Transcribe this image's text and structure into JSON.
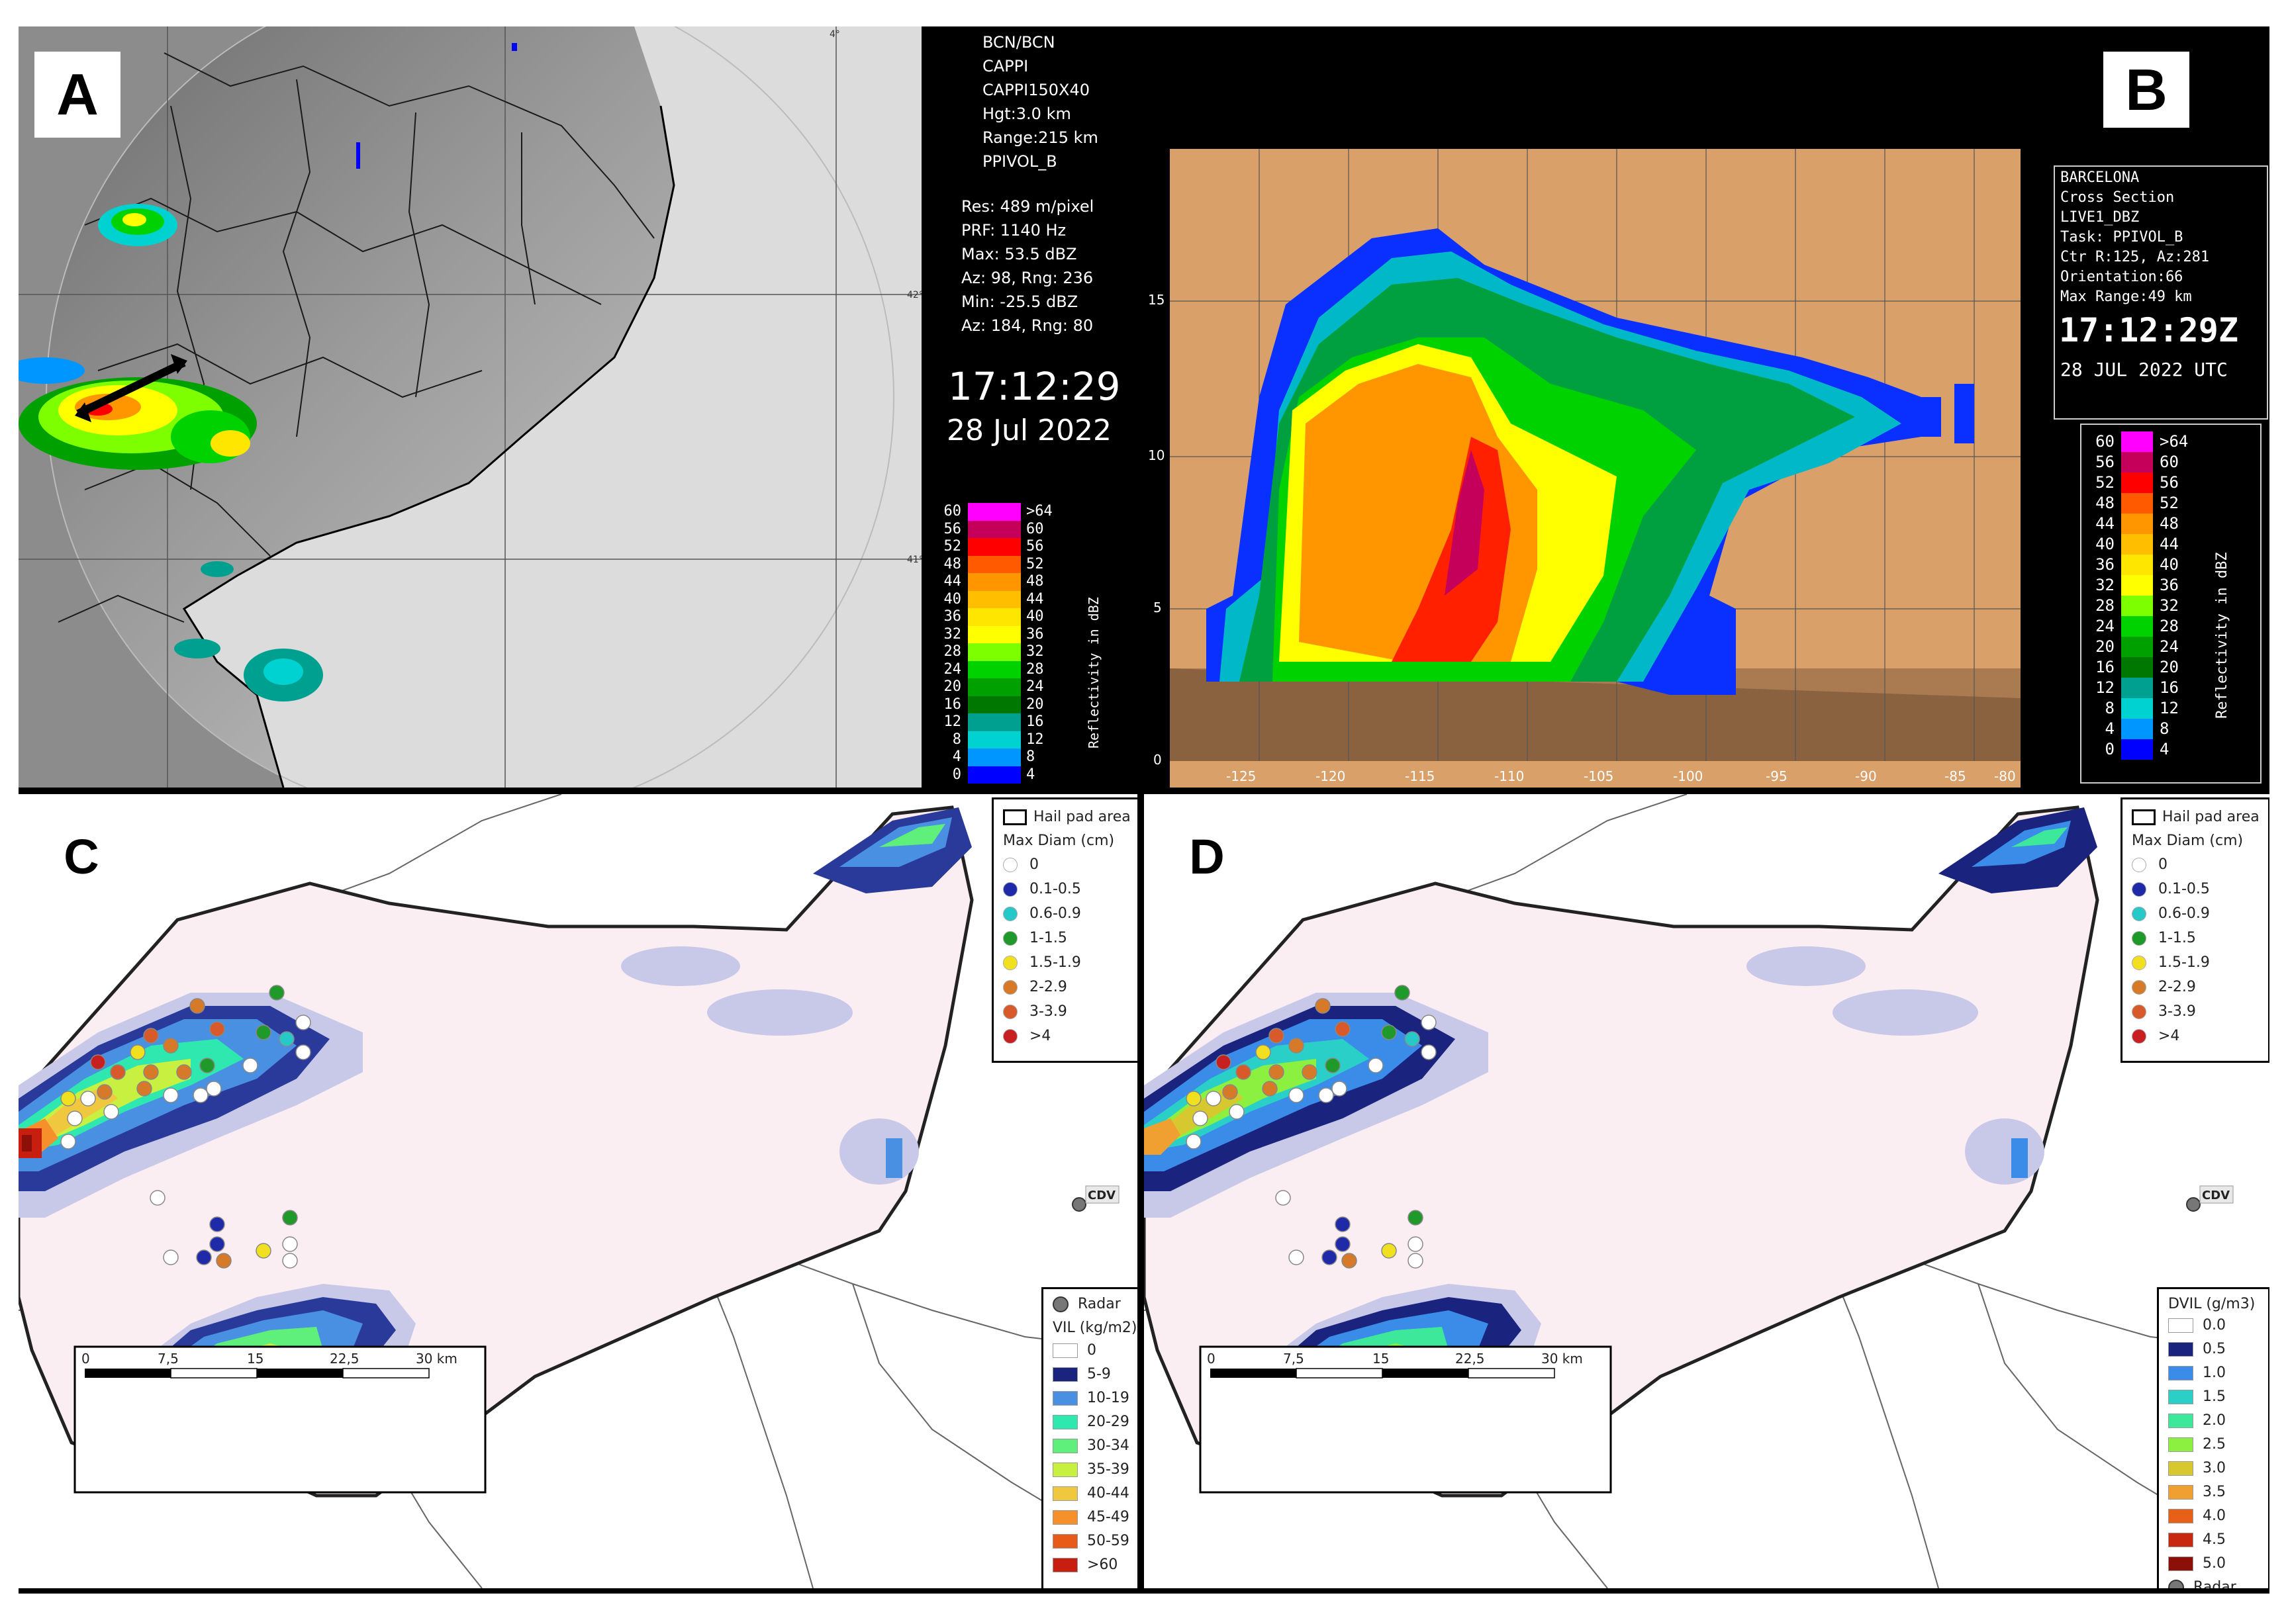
{
  "panel_labels": {
    "a": "A",
    "b": "B",
    "c": "C",
    "d": "D"
  },
  "panel_a": {
    "info": [
      "BCN/BCN",
      "CAPPI",
      "CAPPI150X40",
      "Hgt:3.0 km",
      "Range:215 km",
      "PPIVOL_B"
    ],
    "stats": [
      "Res: 489 m/pixel",
      "PRF: 1140 Hz",
      "Max: 53.5 dBZ",
      "Az:  98, Rng: 236",
      "Min: -25.5 dBZ",
      "Az:  184, Rng: 80"
    ],
    "time": "17:12:29",
    "date": "28 Jul 2022",
    "lat_labels": [
      "42°",
      "41°"
    ],
    "lon_label": "4°",
    "scale_title": "Reflectivity in dBZ",
    "scale_left": [
      "60",
      "56",
      "52",
      "48",
      "44",
      "40",
      "36",
      "32",
      "28",
      "24",
      "20",
      "16",
      "12",
      "8",
      "4",
      "0"
    ],
    "scale_right": [
      ">64",
      "60",
      "56",
      "52",
      "48",
      "44",
      "40",
      "36",
      "32",
      "28",
      "24",
      "20",
      "16",
      "12",
      "8",
      "4"
    ],
    "scale_colors": [
      "#ff00ff",
      "#c4005a",
      "#ff0000",
      "#ff5a00",
      "#ff9600",
      "#ffbe00",
      "#ffe600",
      "#ffff00",
      "#7dff00",
      "#00d200",
      "#00a000",
      "#007800",
      "#00a090",
      "#00d2d2",
      "#0096ff",
      "#0000ff"
    ]
  },
  "panel_b": {
    "info": [
      "BARCELONA",
      "Cross Section",
      "LIVE1_DBZ",
      "Task: PPIVOL_B",
      "Ctr R:125, Az:281",
      "Orientation:66",
      "Max Range:49 km"
    ],
    "time": "17:12:29Z",
    "date": "28 JUL 2022 UTC",
    "x_ticks": [
      "-125",
      "-120",
      "-115",
      "-110",
      "-105",
      "-100",
      "-95",
      "-90",
      "-85",
      "-80"
    ],
    "y_ticks": [
      "0",
      "5",
      "10",
      "15"
    ],
    "scale_title": "Reflectivity in dBZ",
    "scale_left": [
      "60",
      "56",
      "52",
      "48",
      "44",
      "40",
      "36",
      "32",
      "28",
      "24",
      "20",
      "16",
      "12",
      "8",
      "4",
      "0"
    ],
    "scale_right": [
      ">64",
      "60",
      "56",
      "52",
      "48",
      "44",
      "40",
      "36",
      "32",
      "28",
      "24",
      "20",
      "16",
      "12",
      "8",
      "4"
    ]
  },
  "panel_c": {
    "hail_legend_title": "Hail pad area",
    "diam_title": "Max Diam (cm)",
    "diam_items": [
      {
        "label": "0",
        "color": "#ffffff"
      },
      {
        "label": "0.1-0.5",
        "color": "#1f2aa8"
      },
      {
        "label": "0.6-0.9",
        "color": "#27c8c8"
      },
      {
        "label": "1-1.5",
        "color": "#1f9a2a"
      },
      {
        "label": "1.5-1.9",
        "color": "#f0e020"
      },
      {
        "label": "2-2.9",
        "color": "#d67a2a"
      },
      {
        "label": "3-3.9",
        "color": "#d85a2a"
      },
      {
        "label": ">4",
        "color": "#c82020"
      }
    ],
    "radar_label": "Radar",
    "vil_title": "VIL (kg/m2)",
    "vil_items": [
      {
        "label": "0",
        "color": "#ffffff"
      },
      {
        "label": "5-9",
        "color": "#1a237e"
      },
      {
        "label": "10-19",
        "color": "#4a90e2"
      },
      {
        "label": "20-29",
        "color": "#2ee8b0"
      },
      {
        "label": "30-34",
        "color": "#5ef07a"
      },
      {
        "label": "35-39",
        "color": "#c8f040"
      },
      {
        "label": "40-44",
        "color": "#f0c840"
      },
      {
        "label": "45-49",
        "color": "#f5902a"
      },
      {
        "label": "50-59",
        "color": "#e85a18"
      },
      {
        "label": ">60",
        "color": "#c81e10"
      }
    ],
    "cdv_label": "CDV",
    "scale_ticks": [
      "0",
      "7,5",
      "15",
      "22,5",
      "30 km"
    ]
  },
  "panel_d": {
    "hail_legend_title": "Hail pad area",
    "diam_title": "Max Diam (cm)",
    "diam_items": [
      {
        "label": "0",
        "color": "#ffffff"
      },
      {
        "label": "0.1-0.5",
        "color": "#1f2aa8"
      },
      {
        "label": "0.6-0.9",
        "color": "#27c8c8"
      },
      {
        "label": "1-1.5",
        "color": "#1f9a2a"
      },
      {
        "label": "1.5-1.9",
        "color": "#f0e020"
      },
      {
        "label": "2-2.9",
        "color": "#d67a2a"
      },
      {
        "label": "3-3.9",
        "color": "#d85a2a"
      },
      {
        "label": ">4",
        "color": "#c82020"
      }
    ],
    "dvil_title": "DVIL (g/m3)",
    "dvil_items": [
      {
        "label": "0.0",
        "color": "#ffffff"
      },
      {
        "label": "0.5",
        "color": "#1a237e"
      },
      {
        "label": "1.0",
        "color": "#3a8ce8"
      },
      {
        "label": "1.5",
        "color": "#2ad0c8"
      },
      {
        "label": "2.0",
        "color": "#3ee89a"
      },
      {
        "label": "2.5",
        "color": "#8cf040"
      },
      {
        "label": "3.0",
        "color": "#d8c830"
      },
      {
        "label": "3.5",
        "color": "#f0a030"
      },
      {
        "label": "4.0",
        "color": "#e86018"
      },
      {
        "label": "4.5",
        "color": "#c82810"
      },
      {
        "label": "5.0",
        "color": "#8c1008"
      }
    ],
    "radar_label": "Radar",
    "cdv_label": "CDV",
    "scale_ticks": [
      "0",
      "7,5",
      "15",
      "22,5",
      "30 km"
    ]
  }
}
